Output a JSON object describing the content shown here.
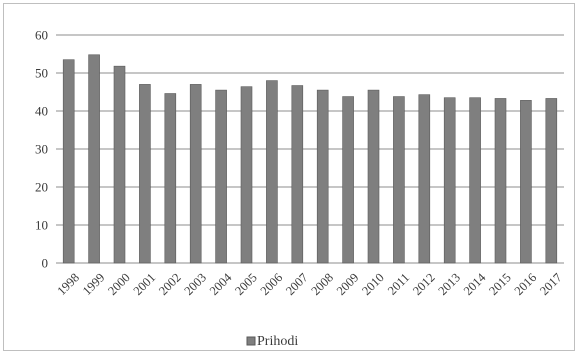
{
  "chart_data": {
    "type": "bar",
    "categories": [
      "1998",
      "1999",
      "2000",
      "2001",
      "2002",
      "2003",
      "2004",
      "2005",
      "2006",
      "2007",
      "2008",
      "2009",
      "2010",
      "2011",
      "2012",
      "2013",
      "2014",
      "2015",
      "2016",
      "2017"
    ],
    "series": [
      {
        "name": "Prihodi",
        "values": [
          53.5,
          54.8,
          51.8,
          47.0,
          44.6,
          47.0,
          45.5,
          46.4,
          48.0,
          46.7,
          45.5,
          43.8,
          45.5,
          43.8,
          44.3,
          43.5,
          43.5,
          43.3,
          42.8,
          43.3
        ]
      }
    ],
    "ylim": [
      0,
      60
    ],
    "yticks": [
      0,
      10,
      20,
      30,
      40,
      50,
      60
    ],
    "grid": true,
    "legend_position": "bottom",
    "colors": {
      "bar": "#7f7f7f",
      "bar_edge": "#5a5a5a",
      "grid": "#8c8c8c"
    }
  }
}
